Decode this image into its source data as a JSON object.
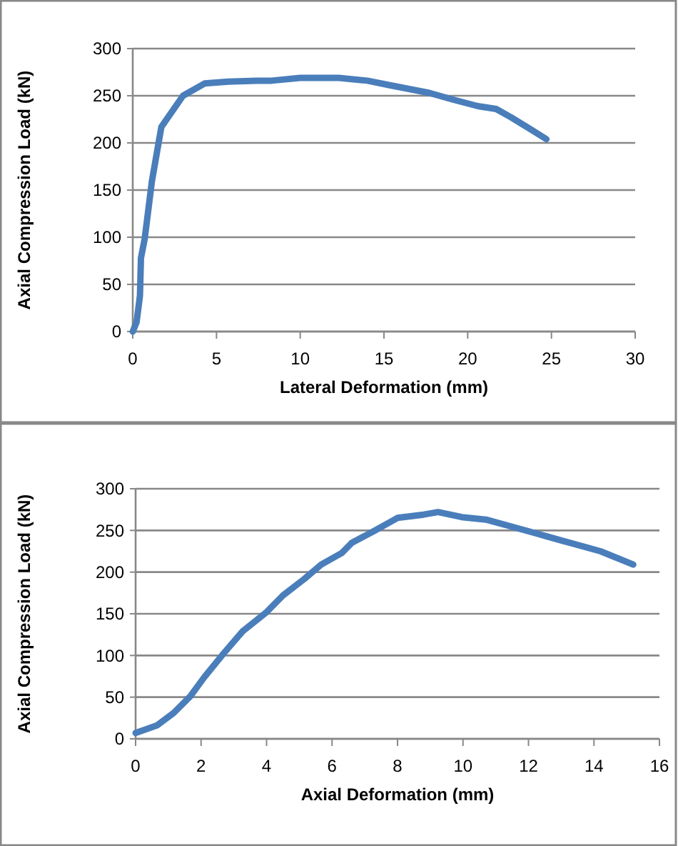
{
  "chart_data": [
    {
      "type": "line",
      "xlabel": "Lateral Deformation (mm)",
      "ylabel": "Axial Compression Load (kN)",
      "xlim": [
        0,
        30
      ],
      "xticks": [
        0,
        5,
        10,
        15,
        20,
        25,
        30
      ],
      "ylim": [
        0,
        300
      ],
      "yticks": [
        0,
        50,
        100,
        150,
        200,
        250,
        300
      ],
      "grid": "y",
      "marker": "none",
      "line_style": "solid",
      "series": [
        {
          "color": "#4a7ebb",
          "x": [
            0,
            0.23,
            0.43,
            0.49,
            0.71,
            0.86,
            1.14,
            1.71,
            3.0,
            4.29,
            5.7,
            7.4,
            8.3,
            10,
            12.3,
            14,
            15.4,
            17.7,
            19.1,
            20.6,
            21.7,
            22.6,
            23.7,
            24.7
          ],
          "values": [
            0,
            10,
            38,
            78,
            98,
            119,
            159,
            217,
            250,
            263,
            265,
            266,
            266,
            269,
            269,
            266,
            261,
            253,
            246,
            239,
            236,
            227,
            215,
            204
          ]
        }
      ]
    },
    {
      "type": "line",
      "xlabel": "Axial Deformation (mm)",
      "ylabel": "Axial Compression Load (kN)",
      "xlim": [
        0,
        16
      ],
      "xticks": [
        0,
        2,
        4,
        6,
        8,
        10,
        12,
        14,
        16
      ],
      "ylim": [
        0,
        300
      ],
      "yticks": [
        0,
        50,
        100,
        150,
        200,
        250,
        300
      ],
      "grid": "y",
      "marker": "none",
      "line_style": "solid",
      "series": [
        {
          "color": "#4a7ebb",
          "x": [
            0,
            0.65,
            1.16,
            1.67,
            2.1,
            2.7,
            3.27,
            4.0,
            4.5,
            5.16,
            5.67,
            6.3,
            6.6,
            7.27,
            8.0,
            8.8,
            9.24,
            9.96,
            10.7,
            12.0,
            13.0,
            14.2,
            15.2
          ],
          "values": [
            7,
            16,
            31,
            51,
            74,
            103,
            129,
            152,
            172,
            192,
            209,
            223,
            235,
            249,
            265,
            269,
            272,
            266,
            263,
            249,
            238,
            225,
            209
          ]
        }
      ]
    }
  ]
}
